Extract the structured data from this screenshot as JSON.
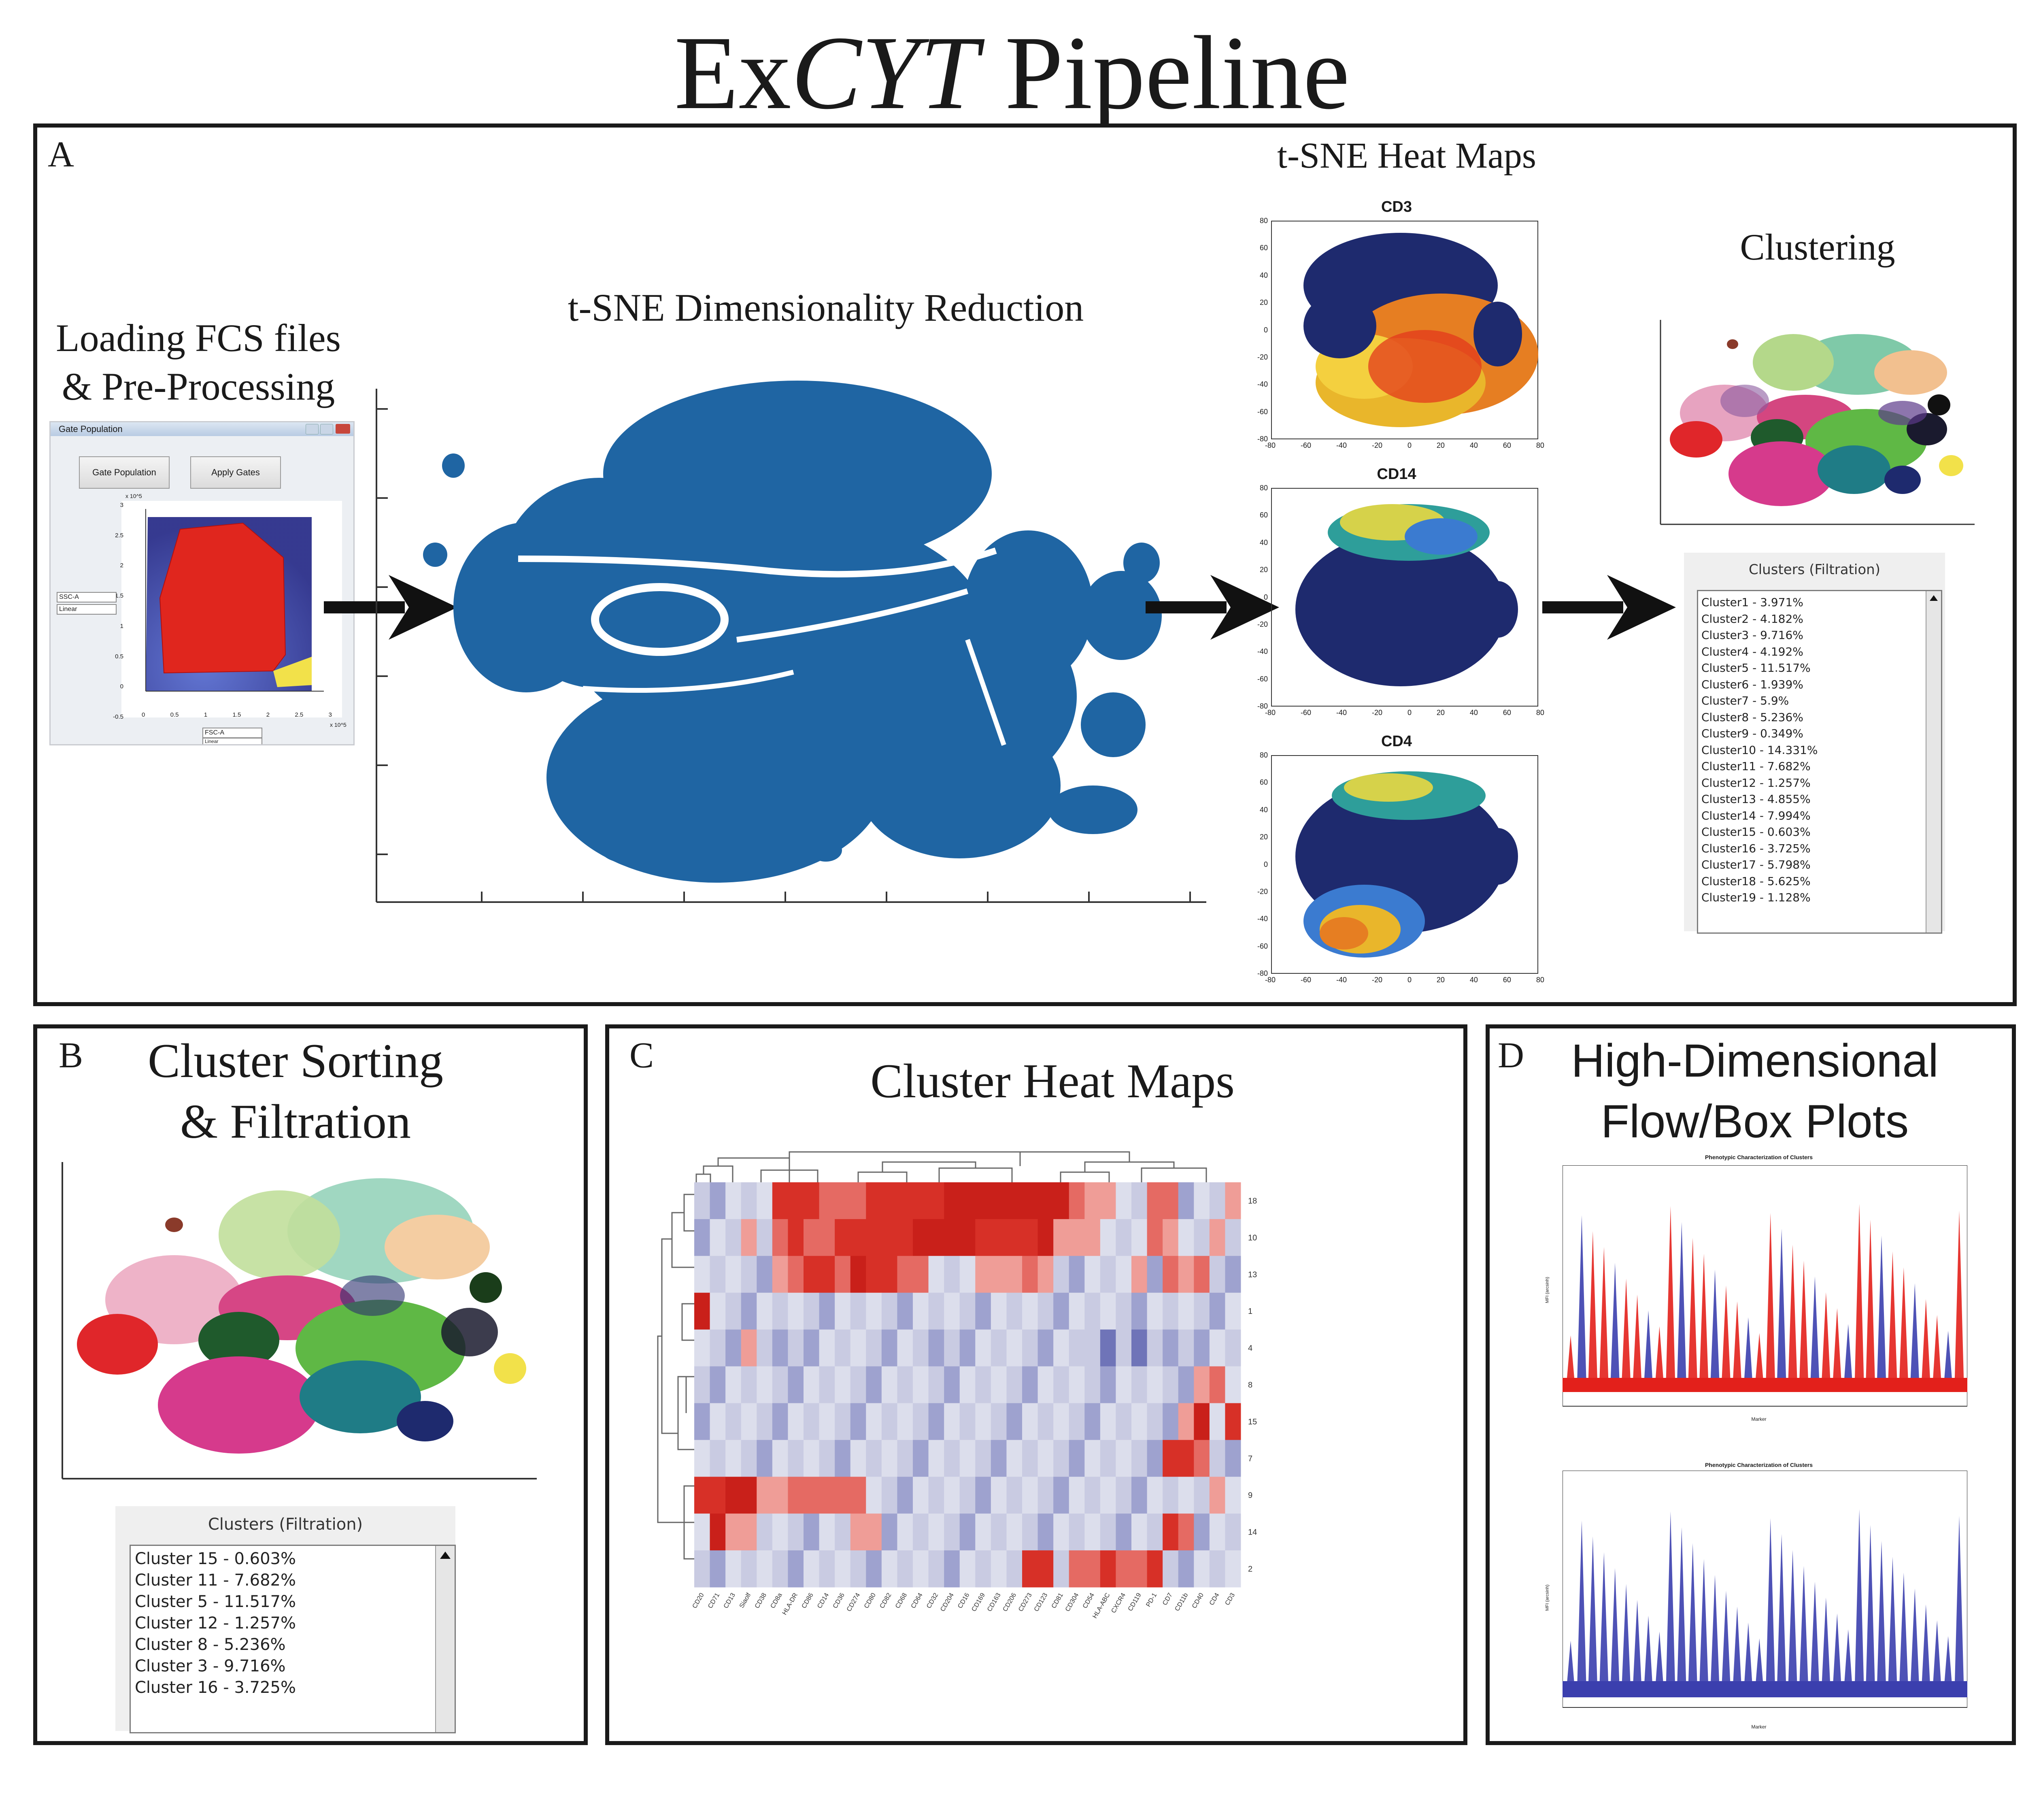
{
  "title_prefix": "Ex",
  "title_italic": "CYT",
  "title_suffix": " Pipeline",
  "panelA": {
    "label": "A",
    "loading_title_line1": "Loading FCS files",
    "loading_title_line2": "& Pre-Processing",
    "gate_window": {
      "window_title": "Gate Population",
      "btn_gate": "Gate Population",
      "btn_apply": "Apply Gates",
      "y_axis_select": "SSC-A",
      "y_scale_select": "Linear",
      "x_axis_select": "FSC-A",
      "x_scale_select": "Linear",
      "exp_label_y": "x 10^5",
      "exp_label_x": "x 10^5",
      "y_ticks": [
        "3",
        "2.5",
        "2",
        "1.5",
        "1",
        "0.5",
        "0",
        "-0.5"
      ],
      "x_ticks": [
        "0",
        "0.5",
        "1",
        "1.5",
        "2",
        "2.5",
        "3"
      ]
    },
    "tsne_title": "t-SNE Dimensionality Reduction",
    "heatmaps_title": "t-SNE Heat Maps",
    "heatmaps": [
      {
        "name": "CD3"
      },
      {
        "name": "CD14"
      },
      {
        "name": "CD4"
      }
    ],
    "heat_y_ticks": [
      "80",
      "60",
      "40",
      "20",
      "0",
      "-20",
      "-40",
      "-60",
      "-80"
    ],
    "heat_x_ticks": [
      "-80",
      "-60",
      "-40",
      "-20",
      "0",
      "20",
      "40",
      "60",
      "80"
    ],
    "clustering_title": "Clustering",
    "cluster_list_header": "Clusters (Filtration)",
    "cluster_list": [
      "Cluster1 - 3.971%",
      "Cluster2 - 4.182%",
      "Cluster3 - 9.716%",
      "Cluster4 - 4.192%",
      "Cluster5 - 11.517%",
      "Cluster6 - 1.939%",
      "Cluster7 - 5.9%",
      "Cluster8 - 5.236%",
      "Cluster9 - 0.349%",
      "Cluster10 - 14.331%",
      "Cluster11 - 7.682%",
      "Cluster12 - 1.257%",
      "Cluster13 - 4.855%",
      "Cluster14 - 7.994%",
      "Cluster15 - 0.603%",
      "Cluster16 - 3.725%",
      "Cluster17 - 5.798%",
      "Cluster18 - 5.625%",
      "Cluster19 - 1.128%"
    ]
  },
  "panelB": {
    "label": "B",
    "title_line1": "Cluster Sorting",
    "title_line2": "& Filtration",
    "list_header": "Clusters (Filtration)",
    "list": [
      "Cluster 15 - 0.603%",
      "Cluster 11 - 7.682%",
      "Cluster 5 - 11.517%",
      "Cluster 12 - 1.257%",
      "Cluster 8 - 5.236%",
      "Cluster 3 - 9.716%",
      "Cluster 16 - 3.725%"
    ]
  },
  "panelC": {
    "label": "C",
    "title": "Cluster Heat Maps",
    "rows": [
      "18",
      "10",
      "13",
      "1",
      "4",
      "8",
      "15",
      "7",
      "9",
      "14",
      "2"
    ],
    "cols": [
      "CD20",
      "CD71",
      "CD13",
      "Siaolf",
      "CD38",
      "CD8a",
      "HLA-DR",
      "CD86",
      "CD14",
      "CD36",
      "CD274",
      "CD80",
      "CD82",
      "CD68",
      "CD64",
      "CD32",
      "CD204",
      "CD16",
      "CD169",
      "CD163",
      "CD206",
      "CD273",
      "CD123",
      "CD81",
      "CD304",
      "CD54",
      "HLA-ABC",
      "CXCR4",
      "CD119",
      "PD-1",
      "CD7",
      "CD11b",
      "CD40",
      "CD4",
      "CD3"
    ]
  },
  "panelD": {
    "label": "D",
    "title_line1": "High-Dimensional",
    "title_line2": "Flow/Box Plots",
    "plot1_title": "Phenotypic Characterization of Clusters",
    "plot2_title": "Phenotypic Characterization of Clusters",
    "xlabel": "Marker",
    "ylabel": "MFI (arcsinh)"
  },
  "colors": {
    "tsne_blue": "#1f65a3",
    "heat_dark": "#1e2a6e",
    "heat_hot": "#e33a1c",
    "gate_red": "#e0261e",
    "gate_yellow": "#f2e14a",
    "hm_red": "#d73027",
    "hm_blue": "#4a4fa5"
  }
}
